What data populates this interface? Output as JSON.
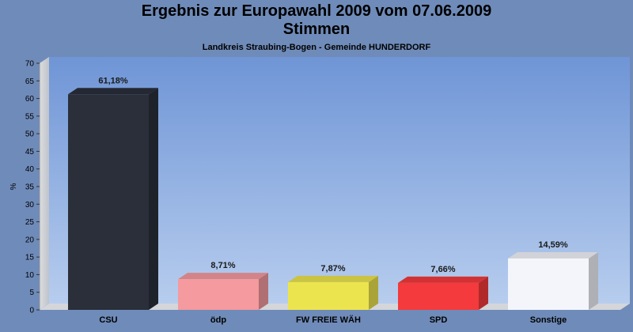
{
  "header": {
    "title": "Ergebnis zur Europawahl 2009 vom 07.06.2009",
    "subtitle": "Stimmen",
    "region": "Landkreis Straubing-Bogen - Gemeinde HUNDERDORF"
  },
  "chart_data": {
    "type": "bar",
    "ylabel": "%",
    "ylim": [
      0,
      70
    ],
    "yticks": [
      0,
      5,
      10,
      15,
      20,
      25,
      30,
      35,
      40,
      45,
      50,
      55,
      60,
      65,
      70
    ],
    "grid": false,
    "categories": [
      "CSU",
      "ödp",
      "FW FREIE WÄH",
      "SPD",
      "Sonstige"
    ],
    "values": [
      61.18,
      8.71,
      7.87,
      7.66,
      14.59
    ],
    "value_labels": [
      "61,18%",
      "8,71%",
      "7,87%",
      "7,66%",
      "14,59%"
    ],
    "colors": [
      "#2a2f3a",
      "#f59a9e",
      "#ece44e",
      "#f43a3c",
      "#f3f5fb"
    ]
  }
}
